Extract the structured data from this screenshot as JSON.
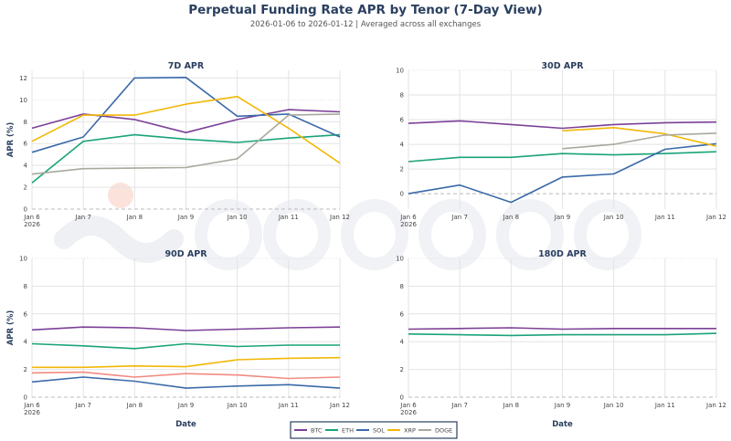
{
  "title": "Perpetual Funding Rate APR by Tenor (7-Day View)",
  "subtitle": "2026-01-06 to 2026-01-12 | Averaged across all exchanges",
  "watermark": "amberdata",
  "colors": {
    "BTC": "#7b3f98",
    "ETH": "#1aa37a",
    "SOL": "#3b6aa8",
    "XRP": "#f2b705",
    "DOGE": "#a8a89e",
    "unnamed": "#f28b82"
  },
  "legend": [
    "BTC",
    "ETH",
    "SOL",
    "XRP",
    "DOGE"
  ],
  "chart_data": [
    {
      "type": "line",
      "title": "7D APR",
      "xlabel": "",
      "ylabel": "APR (%)",
      "ylim": [
        0,
        12.7
      ],
      "yticks": [
        0,
        2,
        4,
        6,
        8,
        10,
        12
      ],
      "categories": [
        "Jan 6",
        "Jan 7",
        "Jan 8",
        "Jan 9",
        "Jan 10",
        "Jan 11",
        "Jan 12"
      ],
      "year_label": "2026",
      "grid": true,
      "series": [
        {
          "name": "BTC",
          "values": [
            7.4,
            8.7,
            8.2,
            7.0,
            8.2,
            9.1,
            8.9
          ]
        },
        {
          "name": "ETH",
          "values": [
            2.4,
            6.2,
            6.8,
            6.4,
            6.1,
            6.5,
            6.8
          ]
        },
        {
          "name": "SOL",
          "values": [
            5.2,
            6.6,
            12.0,
            12.05,
            8.5,
            8.7,
            6.6
          ]
        },
        {
          "name": "XRP",
          "values": [
            6.2,
            8.6,
            8.6,
            9.6,
            10.3,
            7.4,
            4.2
          ]
        },
        {
          "name": "DOGE",
          "values": [
            3.2,
            3.7,
            3.75,
            3.8,
            4.6,
            8.6,
            8.7
          ]
        }
      ]
    },
    {
      "type": "line",
      "title": "30D APR",
      "xlabel": "",
      "ylabel": "",
      "ylim": [
        -1.25,
        10
      ],
      "yticks": [
        0,
        2,
        4,
        6,
        8,
        10
      ],
      "categories": [
        "Jan 6",
        "Jan 7",
        "Jan 8",
        "Jan 9",
        "Jan 10",
        "Jan 11",
        "Jan 12"
      ],
      "year_label": "2026",
      "grid": true,
      "series": [
        {
          "name": "BTC",
          "values": [
            5.7,
            5.9,
            5.6,
            5.3,
            5.6,
            5.75,
            5.8
          ]
        },
        {
          "name": "ETH",
          "values": [
            2.6,
            2.95,
            2.95,
            3.25,
            3.15,
            3.25,
            3.4
          ]
        },
        {
          "name": "SOL",
          "values": [
            0,
            0.7,
            -0.7,
            1.35,
            1.6,
            3.6,
            4.05
          ]
        },
        {
          "name": "XRP",
          "values": [
            null,
            null,
            null,
            5.1,
            5.35,
            4.85,
            3.85
          ]
        },
        {
          "name": "DOGE",
          "values": [
            null,
            null,
            null,
            3.65,
            4.0,
            4.75,
            4.9
          ]
        }
      ]
    },
    {
      "type": "line",
      "title": "90D APR",
      "xlabel": "Date",
      "ylabel": "APR (%)",
      "ylim": [
        0,
        10
      ],
      "yticks": [
        0,
        2,
        4,
        6,
        8,
        10
      ],
      "categories": [
        "Jan 6",
        "Jan 7",
        "Jan 8",
        "Jan 9",
        "Jan 10",
        "Jan 11",
        "Jan 12"
      ],
      "year_label": "2026",
      "grid": true,
      "series": [
        {
          "name": "BTC",
          "values": [
            4.85,
            5.05,
            5.0,
            4.8,
            4.9,
            5.0,
            5.05
          ]
        },
        {
          "name": "ETH",
          "values": [
            3.85,
            3.7,
            3.5,
            3.85,
            3.65,
            3.75,
            3.75
          ]
        },
        {
          "name": "XRP",
          "values": [
            2.15,
            2.15,
            2.25,
            2.2,
            2.7,
            2.8,
            2.85
          ]
        },
        {
          "color_key": "unnamed",
          "values": [
            1.75,
            1.8,
            1.45,
            1.7,
            1.6,
            1.35,
            1.45
          ]
        },
        {
          "name": "SOL",
          "values": [
            1.1,
            1.45,
            1.15,
            0.65,
            0.8,
            0.9,
            0.65
          ]
        }
      ]
    },
    {
      "type": "line",
      "title": "180D APR",
      "xlabel": "Date",
      "ylabel": "",
      "ylim": [
        0,
        10
      ],
      "yticks": [
        0,
        2,
        4,
        6,
        8,
        10
      ],
      "categories": [
        "Jan 6",
        "Jan 7",
        "Jan 8",
        "Jan 9",
        "Jan 10",
        "Jan 11",
        "Jan 12"
      ],
      "year_label": "2026",
      "grid": true,
      "series": [
        {
          "name": "BTC",
          "values": [
            4.9,
            4.95,
            5.0,
            4.9,
            4.95,
            4.95,
            4.95
          ]
        },
        {
          "name": "ETH",
          "values": [
            4.55,
            4.5,
            4.45,
            4.5,
            4.5,
            4.5,
            4.6
          ]
        }
      ]
    }
  ]
}
